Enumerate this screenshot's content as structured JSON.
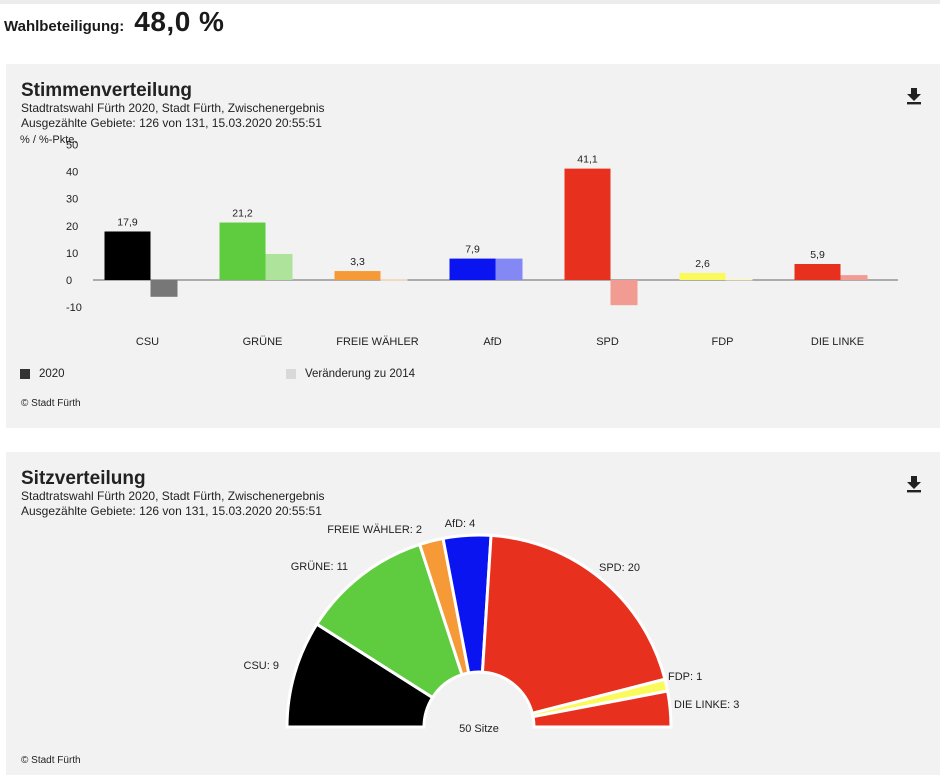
{
  "turnout": {
    "label": "Wahlbeteiligung:",
    "value": "48,0 %"
  },
  "votes": {
    "title": "Stimmenverteilung",
    "subtitle1": "Stadtratswahl Fürth 2020, Stadt Fürth, Zwischenergebnis",
    "subtitle2": "Ausgezählte Gebiete: 126 von 131, 15.03.2020 20:55:51",
    "unit": "% / %-Pkte.",
    "download_icon": "download-icon",
    "legend": [
      {
        "label": "2020",
        "color": "#333333"
      },
      {
        "label": "Veränderung zu 2014",
        "color": "#d9d9d9"
      }
    ],
    "credit": "© Stadt Fürth"
  },
  "seats": {
    "title": "Sitzverteilung",
    "subtitle1": "Stadtratswahl Fürth 2020, Stadt Fürth, Zwischenergebnis",
    "subtitle2": "Ausgezählte Gebiete: 126 von 131, 15.03.2020 20:55:51",
    "center_label": "50 Sitze",
    "download_icon": "download-icon",
    "credit": "© Stadt Fürth"
  },
  "chart_data": [
    {
      "type": "bar",
      "ylabel": "% / %-Pkte.",
      "ylim": [
        -10,
        50
      ],
      "yticks": [
        50,
        40,
        30,
        20,
        10,
        0,
        -10
      ],
      "grid": false,
      "legend_position": "bottom-left",
      "categories": [
        "CSU",
        "GRÜNE",
        "FREIE WÄHLER",
        "AfD",
        "SPD",
        "FDP",
        "DIE LINKE"
      ],
      "colors": [
        "#000000",
        "#5ecc3e",
        "#f59a36",
        "#0a14f0",
        "#e8301f",
        "#fafa5a",
        "#e8301f"
      ],
      "change_colors": [
        "#777777",
        "#aee39c",
        "#f7c79a",
        "#8388f4",
        "#f29b92",
        "#fcfcb0",
        "#f29b92"
      ],
      "series": [
        {
          "name": "2020",
          "values": [
            17.9,
            21.2,
            3.3,
            7.9,
            41.1,
            2.6,
            5.9
          ],
          "labels": [
            "17,9",
            "21,2",
            "3,3",
            "7,9",
            "41,1",
            "2,6",
            "5,9"
          ]
        },
        {
          "name": "Veränderung zu 2014",
          "values": [
            -6.2,
            9.6,
            0.2,
            7.9,
            -9.3,
            0.3,
            1.8
          ]
        }
      ]
    },
    {
      "type": "pie",
      "variant": "half-donut",
      "total": 50,
      "slices": [
        {
          "label": "CSU: 9",
          "value": 9,
          "color": "#000000"
        },
        {
          "label": "GRÜNE: 11",
          "value": 11,
          "color": "#5ecc3e"
        },
        {
          "label": "FREIE WÄHLER: 2",
          "value": 2,
          "color": "#f59a36"
        },
        {
          "label": "AfD: 4",
          "value": 4,
          "color": "#0a14f0"
        },
        {
          "label": "SPD: 20",
          "value": 20,
          "color": "#e8301f"
        },
        {
          "label": "FDP: 1",
          "value": 1,
          "color": "#fafa5a"
        },
        {
          "label": "DIE LINKE: 3",
          "value": 3,
          "color": "#e8301f"
        }
      ]
    }
  ]
}
